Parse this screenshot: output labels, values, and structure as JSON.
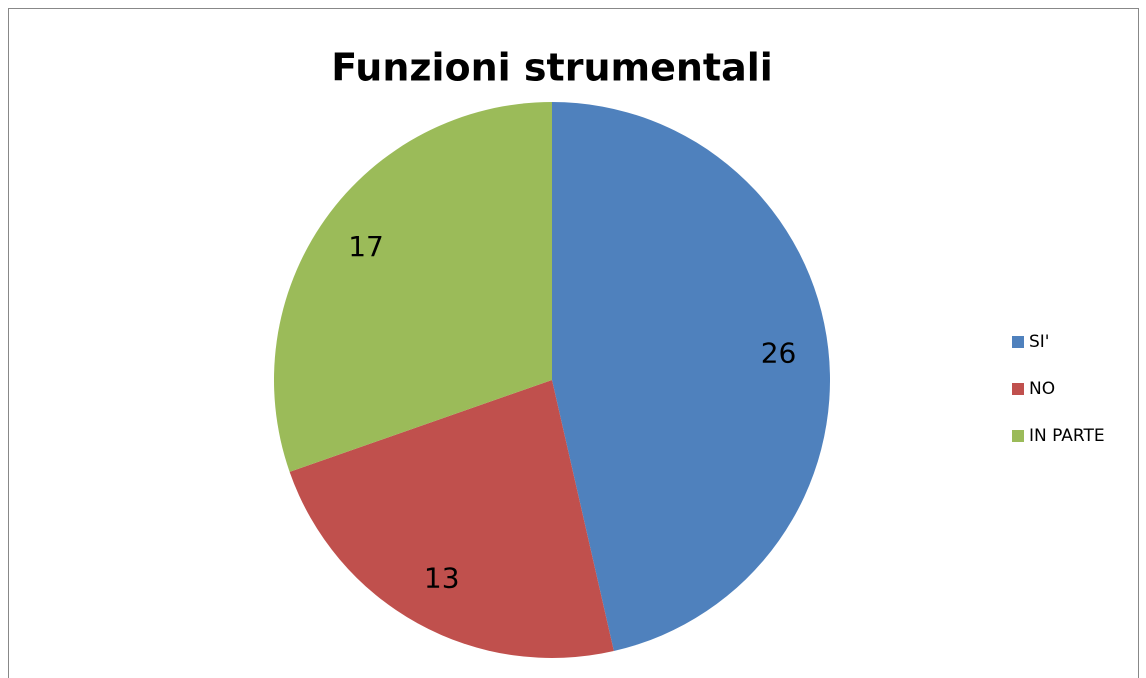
{
  "chart_data": {
    "type": "pie",
    "title": "Funzioni strumentali",
    "categories": [
      "SI'",
      "NO",
      "IN PARTE"
    ],
    "values": [
      26,
      13,
      17
    ],
    "colors": [
      "#4f81bd",
      "#c0504d",
      "#9bbb59"
    ],
    "legend": "right"
  }
}
